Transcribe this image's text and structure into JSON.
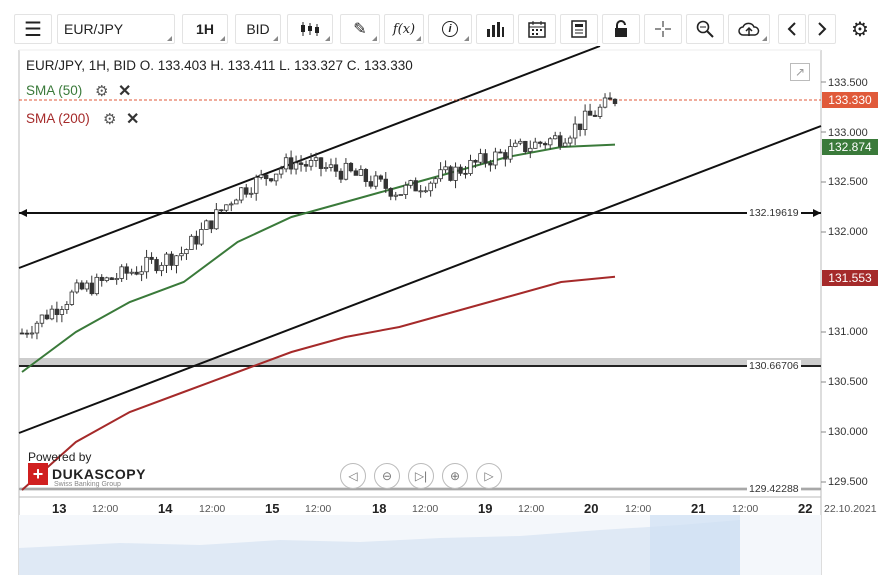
{
  "toolbar": {
    "menu_icon": "menu-icon",
    "symbol": "EUR/JPY",
    "timeframe": "1H",
    "price_side": "BID",
    "fx_label": "f(x)",
    "icons": [
      "candlestick-icon",
      "draw-pencil-icon",
      "fx-icon",
      "info-icon",
      "volume-bars-icon",
      "calendar-icon",
      "report-icon",
      "lock-icon",
      "crosshair-icon",
      "zoom-icon",
      "cloud-upload-icon",
      "prev-arrow-icon",
      "next-arrow-icon",
      "settings-gear-icon"
    ]
  },
  "legend": {
    "ohlc": "EUR/JPY, 1H, BID    O. 133.403 H. 133.411 L. 133.327 C. 133.330",
    "sma50": "SMA (50)",
    "sma200": "SMA (200)"
  },
  "price_tags": {
    "last": {
      "value": "133.330",
      "color": "#e05a3a"
    },
    "sma50": {
      "value": "132.874",
      "color": "#3a7a3a"
    },
    "sma200": {
      "value": "131.553",
      "color": "#a52a2a"
    }
  },
  "y_axis": [
    "133.500",
    "133.000",
    "132.500",
    "132.000",
    "131.000",
    "130.500",
    "130.000",
    "129.500"
  ],
  "horizontal_lines": [
    "132.19619",
    "130.66706",
    "129.42288"
  ],
  "x_axis": [
    {
      "label": "13",
      "major": true
    },
    {
      "label": "12:00",
      "major": false
    },
    {
      "label": "14",
      "major": true
    },
    {
      "label": "12:00",
      "major": false
    },
    {
      "label": "15",
      "major": true
    },
    {
      "label": "12:00",
      "major": false
    },
    {
      "label": "18",
      "major": true
    },
    {
      "label": "12:00",
      "major": false
    },
    {
      "label": "19",
      "major": true
    },
    {
      "label": "12:00",
      "major": false
    },
    {
      "label": "20",
      "major": true
    },
    {
      "label": "12:00",
      "major": false
    },
    {
      "label": "21",
      "major": true
    },
    {
      "label": "12:00",
      "major": false
    },
    {
      "label": "22",
      "major": true
    },
    {
      "label": "22.10.2021",
      "major": false
    }
  ],
  "branding": {
    "powered_by": "Powered by",
    "logo": "DUKASCOPY",
    "tagline": "Swiss Banking Group"
  },
  "nav_buttons": [
    "scroll-left-icon",
    "zoom-out-icon",
    "reset-icon",
    "zoom-in-icon",
    "scroll-right-icon"
  ],
  "chart_data": {
    "type": "line",
    "symbol": "EUR/JPY",
    "timeframe": "1H",
    "ylim": [
      129.35,
      133.8
    ],
    "x": [
      "13",
      "13 12:00",
      "14",
      "14 12:00",
      "15",
      "15 12:00",
      "18",
      "18 12:00",
      "19",
      "19 12:00",
      "20",
      "20 12:00"
    ],
    "series": [
      {
        "name": "SMA (50)",
        "values": [
          130.6,
          131.0,
          131.3,
          131.5,
          131.9,
          132.15,
          132.3,
          132.45,
          132.6,
          132.75,
          132.85,
          132.874
        ]
      },
      {
        "name": "SMA (200)",
        "values": [
          129.42,
          129.9,
          130.2,
          130.4,
          130.6,
          130.8,
          130.95,
          131.05,
          131.2,
          131.35,
          131.5,
          131.553
        ]
      }
    ],
    "close": [
      130.99,
      131.4,
      131.6,
      131.8,
      132.4,
      132.7,
      132.6,
      132.4,
      132.6,
      132.8,
      132.95,
      133.33
    ],
    "last_close": 133.33
  }
}
